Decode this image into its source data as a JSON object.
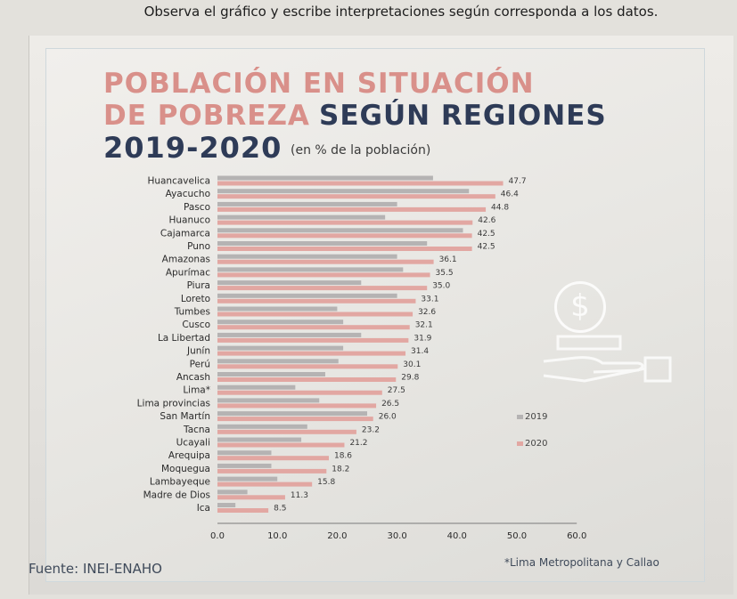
{
  "instruction": "Observa el gráfico y escribe interpretaciones según corresponda a los datos.",
  "title_line1": "POBLACIÓN EN SITUACIÓN",
  "title_line2a": "DE POBREZA",
  "title_line2b": "SEGÚN REGIONES",
  "title_line3": "2019-2020",
  "subtitle": "(en % de la población)",
  "source": "Fuente: INEI-ENAHO",
  "footnote": "*Lima Metropolitana y Callao",
  "legend": [
    {
      "label": "2019",
      "color": "#b5b3b3"
    },
    {
      "label": "2020",
      "color": "#e2a7a2"
    }
  ],
  "colors": {
    "bar_2019": "#b5b3b3",
    "bar_2020": "#e2a7a2",
    "title_pink": "#d9908a",
    "title_navy": "#2e3b57"
  },
  "icons": [
    "coin-dollar-icon",
    "hand-money-icon"
  ],
  "chart_data": {
    "type": "bar",
    "orientation": "horizontal",
    "categories": [
      "Huancavelica",
      "Ayacucho",
      "Pasco",
      "Huanuco",
      "Cajamarca",
      "Puno",
      "Amazonas",
      "Apurímac",
      "Piura",
      "Loreto",
      "Tumbes",
      "Cusco",
      "La Libertad",
      "Junín",
      "Perú",
      "Ancash",
      "Lima*",
      "Lima provincias",
      "San Martín",
      "Tacna",
      "Ucayali",
      "Arequipa",
      "Moquegua",
      "Lambayeque",
      "Madre de Dios",
      "Ica"
    ],
    "series": [
      {
        "name": "2019",
        "values": [
          36.0,
          42.0,
          30.0,
          28.0,
          41.0,
          35.0,
          30.0,
          31.0,
          24.0,
          30.0,
          20.0,
          21.0,
          24.0,
          21.0,
          20.2,
          18.0,
          13.0,
          17.0,
          25.0,
          15.0,
          14.0,
          9.0,
          9.0,
          10.0,
          5.0,
          3.0
        ]
      },
      {
        "name": "2020",
        "values": [
          47.7,
          46.4,
          44.8,
          42.6,
          42.5,
          42.5,
          36.1,
          35.5,
          35.0,
          33.1,
          32.6,
          32.1,
          31.9,
          31.4,
          30.1,
          29.8,
          27.5,
          26.5,
          26.0,
          23.2,
          21.2,
          18.6,
          18.2,
          15.8,
          11.3,
          8.5
        ]
      }
    ],
    "labels_2020": [
      "47.7",
      "46.4",
      "44.8",
      "42.6",
      "42.5",
      "42.5",
      "36.1",
      "35.5",
      "35.0",
      "33.1",
      "32.6",
      "32.1",
      "31.9",
      "31.4",
      "30.1",
      "29.8",
      "27.5",
      "26.5",
      "26.0",
      "23.2",
      "21.2",
      "18.6",
      "18.2",
      "15.8",
      "11.3",
      "8.5"
    ],
    "xticks": [
      "0.0",
      "10.0",
      "20.0",
      "30.0",
      "40.0",
      "50.0",
      "60.0"
    ],
    "xlim": [
      0,
      60
    ],
    "grid": false,
    "legend_position": "right"
  }
}
